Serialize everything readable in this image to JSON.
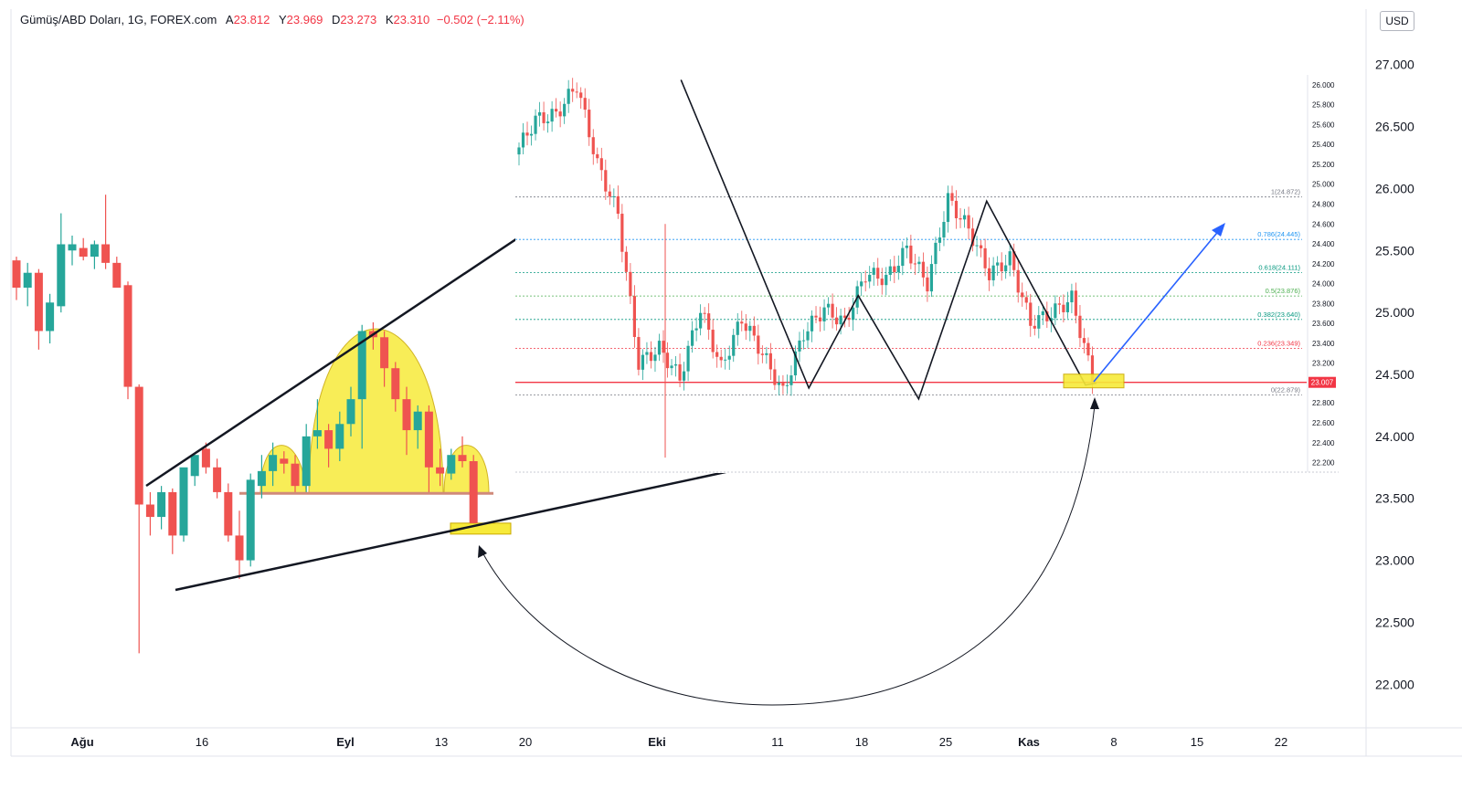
{
  "header": {
    "symbol": "Gümüş/ABD Doları, 1G, FOREX.com",
    "open_label": "A",
    "open_value": "23.812",
    "high_label": "Y",
    "high_value": "23.969",
    "low_label": "D",
    "low_value": "23.273",
    "close_label": "K",
    "close_value": "23.310",
    "change": "−0.502 (−2.11%)"
  },
  "currency_button": "USD",
  "colors": {
    "up": "#26a69a",
    "down": "#ef5350",
    "fib_line": "#f23645",
    "highlight": "#f7ea3a",
    "arrow": "#2962ff"
  },
  "chart_data": [
    {
      "type": "candlestick",
      "name": "main",
      "y_axis_ticks": [
        "27.000",
        "26.500",
        "26.000",
        "25.500",
        "25.000",
        "24.500",
        "24.000",
        "23.500",
        "23.000",
        "22.500",
        "22.000"
      ],
      "ylim": [
        21.7,
        27.3
      ],
      "x_axis_labels": [
        "Ağu",
        "16",
        "Eyl",
        "13",
        "20",
        "Eki",
        "11",
        "18",
        "25",
        "Kas",
        "8",
        "15",
        "22"
      ],
      "candles": [
        [
          25.42,
          25.45,
          25.1,
          25.2
        ],
        [
          25.2,
          25.4,
          25.05,
          25.32
        ],
        [
          25.32,
          25.35,
          24.7,
          24.85
        ],
        [
          24.85,
          25.15,
          24.75,
          25.08
        ],
        [
          25.05,
          25.8,
          25.0,
          25.55
        ],
        [
          25.5,
          25.62,
          25.38,
          25.55
        ],
        [
          25.52,
          25.6,
          25.42,
          25.45
        ],
        [
          25.45,
          25.58,
          25.35,
          25.55
        ],
        [
          25.55,
          25.95,
          25.35,
          25.4
        ],
        [
          25.4,
          25.45,
          25.2,
          25.2
        ],
        [
          25.22,
          25.25,
          24.3,
          24.4
        ],
        [
          24.4,
          24.42,
          22.25,
          23.45
        ],
        [
          23.45,
          23.55,
          23.2,
          23.35
        ],
        [
          23.35,
          23.6,
          23.25,
          23.55
        ],
        [
          23.55,
          23.58,
          23.05,
          23.2
        ],
        [
          23.2,
          23.7,
          23.15,
          23.75
        ],
        [
          23.68,
          23.85,
          23.6,
          23.85
        ],
        [
          23.9,
          23.95,
          23.7,
          23.75
        ],
        [
          23.75,
          23.82,
          23.5,
          23.55
        ],
        [
          23.55,
          23.62,
          23.15,
          23.2
        ],
        [
          23.2,
          23.4,
          22.85,
          23.0
        ],
        [
          23.0,
          23.7,
          22.95,
          23.65
        ],
        [
          23.6,
          23.85,
          23.5,
          23.72
        ],
        [
          23.72,
          23.95,
          23.6,
          23.85
        ],
        [
          23.82,
          23.88,
          23.7,
          23.78
        ],
        [
          23.78,
          23.85,
          23.55,
          23.6
        ],
        [
          23.6,
          24.1,
          23.55,
          24.0
        ],
        [
          24.0,
          24.3,
          23.9,
          24.05
        ],
        [
          24.05,
          24.1,
          23.75,
          23.9
        ],
        [
          23.9,
          24.2,
          23.8,
          24.1
        ],
        [
          24.1,
          24.4,
          24.0,
          24.3
        ],
        [
          24.3,
          24.9,
          23.9,
          24.85
        ],
        [
          24.85,
          24.92,
          24.7,
          24.8
        ],
        [
          24.8,
          24.85,
          24.4,
          24.55
        ],
        [
          24.55,
          24.6,
          24.2,
          24.3
        ],
        [
          24.3,
          24.4,
          23.85,
          24.05
        ],
        [
          24.05,
          24.25,
          23.9,
          24.2
        ],
        [
          24.2,
          24.25,
          23.55,
          23.75
        ],
        [
          23.75,
          23.9,
          23.6,
          23.7
        ],
        [
          23.7,
          23.9,
          23.65,
          23.85
        ],
        [
          23.85,
          24.0,
          23.75,
          23.8
        ],
        [
          23.8,
          23.85,
          23.3,
          23.3
        ]
      ],
      "annotations": {
        "trend_upper": [
          [
            0,
            23.6
          ],
          [
            21,
            24.6
          ]
        ],
        "trend_lower": [
          [
            1,
            22.7
          ],
          [
            53,
            24.1
          ]
        ],
        "neckline": 23.54,
        "highlight_zone": [
          23.2,
          23.3
        ]
      }
    },
    {
      "type": "candlestick",
      "name": "inset",
      "y_axis_ticks": [
        "26.000",
        "25.800",
        "25.600",
        "25.400",
        "25.200",
        "25.000",
        "24.800",
        "24.600",
        "24.400",
        "24.200",
        "24.000",
        "23.800",
        "23.600",
        "23.400",
        "23.200",
        "23.000",
        "22.800",
        "22.600",
        "22.400",
        "22.200"
      ],
      "ylim": [
        22.15,
        26.1
      ],
      "current_price": "23.007",
      "fib_levels": [
        {
          "label": "1(24.872)",
          "value": 24.872,
          "color": "#787b86"
        },
        {
          "label": "0.786(24.445)",
          "value": 24.445,
          "color": "#2196f3"
        },
        {
          "label": "0.618(24.111)",
          "value": 24.111,
          "color": "#089981"
        },
        {
          "label": "0.5(23.876)",
          "value": 23.876,
          "color": "#4caf50"
        },
        {
          "label": "0.382(23.640)",
          "value": 23.64,
          "color": "#089981"
        },
        {
          "label": "0.236(23.349)",
          "value": 23.349,
          "color": "#f23645"
        },
        {
          "label": "0(22.879)",
          "value": 22.879,
          "color": "#787b86"
        }
      ],
      "candles_seed": [
        25.3,
        25.65,
        25.7,
        26.0,
        25.2,
        24.7,
        23.2,
        23.35,
        23.05,
        23.75,
        23.15,
        23.65,
        23.3,
        22.9,
        23.5,
        23.75,
        23.6,
        24.1,
        24.05,
        24.35,
        24.0,
        24.85,
        24.55,
        24.1,
        24.25,
        23.6,
        23.7,
        23.85,
        23.05
      ],
      "zigzag": [
        [
          0.285,
          26.05
        ],
        [
          0.505,
          22.95
        ],
        [
          0.59,
          23.88
        ],
        [
          0.694,
          22.84
        ],
        [
          0.811,
          24.83
        ],
        [
          0.981,
          22.98
        ],
        [
          1.0,
          23.0
        ]
      ]
    }
  ]
}
